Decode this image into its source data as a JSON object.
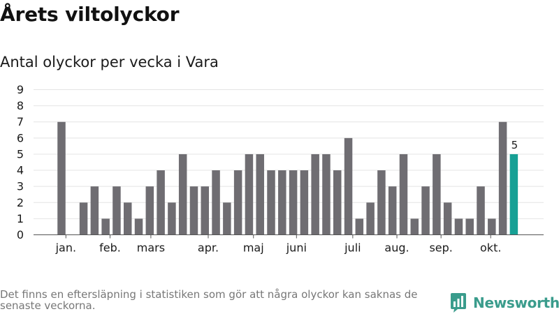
{
  "header": {
    "title": "Årets viltolyckor",
    "subtitle": "Antal olyckor per vecka i Vara"
  },
  "chart_data": {
    "type": "bar",
    "title": "Årets viltolyckor",
    "subtitle": "Antal olyckor per vecka i Vara",
    "xlabel": "",
    "ylabel": "",
    "ylim": [
      0,
      9
    ],
    "yticks": [
      0,
      1,
      2,
      3,
      4,
      5,
      6,
      7,
      8,
      9
    ],
    "grid": true,
    "values": [
      7,
      0,
      2,
      3,
      1,
      3,
      2,
      1,
      3,
      4,
      2,
      5,
      3,
      3,
      4,
      2,
      4,
      5,
      5,
      4,
      4,
      4,
      4,
      5,
      5,
      4,
      6,
      1,
      2,
      4,
      3,
      5,
      1,
      3,
      5,
      2,
      1,
      1,
      3,
      1,
      7,
      5
    ],
    "month_labels": [
      {
        "label": "jan.",
        "week_index": 0.4
      },
      {
        "label": "feb.",
        "week_index": 4.4
      },
      {
        "label": "mars",
        "week_index": 8.1
      },
      {
        "label": "apr.",
        "week_index": 13.3
      },
      {
        "label": "maj",
        "week_index": 17.4
      },
      {
        "label": "juni",
        "week_index": 21.3
      },
      {
        "label": "juli",
        "week_index": 26.4
      },
      {
        "label": "aug.",
        "week_index": 30.4
      },
      {
        "label": "sep.",
        "week_index": 34.4
      },
      {
        "label": "okt.",
        "week_index": 38.9
      }
    ],
    "highlight_index": 41,
    "highlight_label": "5",
    "colors": {
      "bar": "#6f6d72",
      "highlight": "#17a095",
      "grid": "#e4e4e4",
      "axis": "#555555"
    }
  },
  "footer": {
    "note": "Det finns en eftersläpning i statistiken som gör att några olyckor kan saknas de senaste veckorna.",
    "brand": "Newsworthy"
  }
}
